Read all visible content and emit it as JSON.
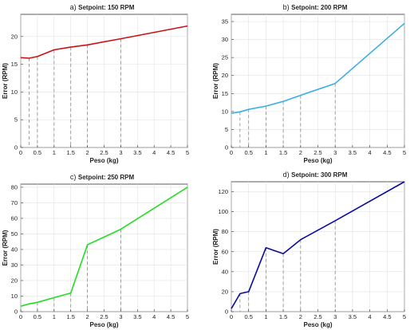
{
  "chart_data": [
    {
      "type": "line",
      "panel_label": "a)",
      "title": "Setpoint: 150 RPM",
      "xlabel": "Peso (kg)",
      "ylabel": "Error (RPM)",
      "xlim": [
        0,
        5
      ],
      "ylim": [
        0,
        24
      ],
      "xticks": [
        "0",
        "0.5",
        "1",
        "1.5",
        "2",
        "2.5",
        "3",
        "3.5",
        "4",
        "4.5",
        "5"
      ],
      "yticks": [
        "0",
        "5",
        "10",
        "15",
        "20"
      ],
      "yticks_values": [
        0,
        5,
        10,
        15,
        20
      ],
      "grid": true,
      "color": "#cc1111",
      "series": [
        {
          "x": [
            0,
            0.25,
            0.5,
            1,
            1.5,
            2,
            3,
            5
          ],
          "y": [
            16.2,
            16.1,
            16.4,
            17.6,
            18.1,
            18.5,
            19.6,
            21.9
          ]
        }
      ],
      "dashed_x": [
        0.25,
        0.5,
        1,
        1.5,
        2,
        3
      ]
    },
    {
      "type": "line",
      "panel_label": "b)",
      "title": "Setpoint: 200 RPM",
      "xlabel": "Peso (kg)",
      "ylabel": "Error (RPM)",
      "xlim": [
        0,
        5
      ],
      "ylim": [
        0,
        37
      ],
      "xticks": [
        "0",
        "0.5",
        "1",
        "1.5",
        "2",
        "2.5",
        "3",
        "3.5",
        "4",
        "4.5",
        "5"
      ],
      "yticks": [
        "0",
        "5",
        "10",
        "15",
        "20",
        "25",
        "30",
        "35"
      ],
      "yticks_values": [
        0,
        5,
        10,
        15,
        20,
        25,
        30,
        35
      ],
      "grid": true,
      "color": "#3aaee0",
      "series": [
        {
          "x": [
            0,
            0.25,
            0.5,
            1,
            1.5,
            2,
            3,
            5
          ],
          "y": [
            9.5,
            9.9,
            10.6,
            11.5,
            12.8,
            14.5,
            17.8,
            34.5
          ]
        }
      ],
      "dashed_x": [
        0.25,
        0.5,
        1,
        1.5,
        2,
        3
      ]
    },
    {
      "type": "line",
      "panel_label": "c)",
      "title": "Setpoint: 250 RPM",
      "xlabel": "Peso (kg)",
      "ylabel": "Error (RPM)",
      "xlim": [
        0,
        5
      ],
      "ylim": [
        0,
        82
      ],
      "xticks": [
        "0",
        "0.5",
        "1",
        "1.5",
        "2",
        "2.5",
        "3",
        "3.5",
        "4",
        "4.5",
        "5"
      ],
      "yticks": [
        "0",
        "10",
        "20",
        "30",
        "40",
        "50",
        "60",
        "70",
        "80"
      ],
      "yticks_values": [
        0,
        10,
        20,
        30,
        40,
        50,
        60,
        70,
        80
      ],
      "grid": true,
      "color": "#22dd22",
      "series": [
        {
          "x": [
            0,
            0.25,
            0.5,
            1,
            1.5,
            2,
            3,
            5
          ],
          "y": [
            3.5,
            5,
            6,
            9,
            12,
            43,
            53,
            80
          ]
        }
      ],
      "dashed_x": [
        0.5,
        1,
        1.5,
        2,
        3
      ]
    },
    {
      "type": "line",
      "panel_label": "d)",
      "title": "Setpoint: 300 RPM",
      "xlabel": "Peso (kg)",
      "ylabel": "Error (RPM)",
      "xlim": [
        0,
        5
      ],
      "ylim": [
        0,
        130
      ],
      "xticks": [
        "0",
        "0.5",
        "1",
        "1.5",
        "2",
        "2.5",
        "3",
        "3.5",
        "4",
        "4.5",
        "5"
      ],
      "yticks": [
        "0",
        "20",
        "40",
        "60",
        "80",
        "100",
        "120"
      ],
      "yticks_values": [
        0,
        20,
        40,
        60,
        80,
        100,
        120
      ],
      "grid": true,
      "color": "#0a0aa0",
      "series": [
        {
          "x": [
            0,
            0.25,
            0.5,
            1,
            1.5,
            2,
            3,
            5
          ],
          "y": [
            3,
            18,
            20,
            64,
            58,
            72,
            91,
            130
          ]
        }
      ],
      "dashed_x": [
        0.25,
        0.5,
        1,
        1.5,
        2,
        3
      ]
    }
  ]
}
